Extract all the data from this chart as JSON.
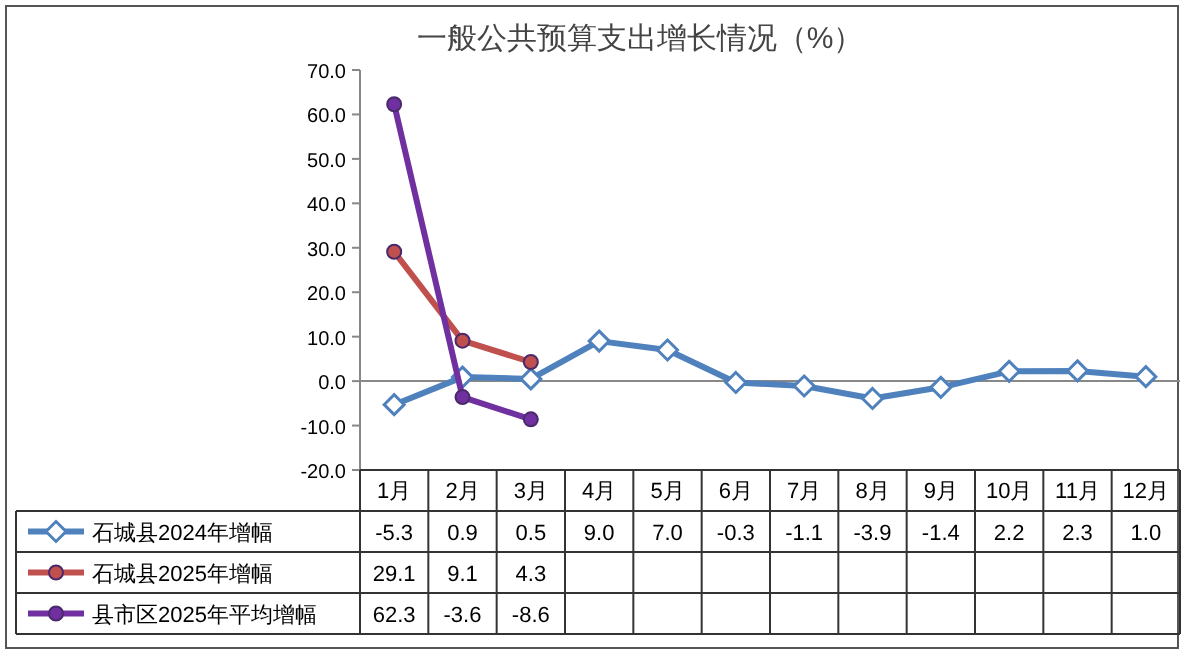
{
  "chart_data": {
    "type": "line",
    "title": "一般公共预算支出增长情况（%）",
    "categories": [
      "1月",
      "2月",
      "3月",
      "4月",
      "5月",
      "6月",
      "7月",
      "8月",
      "9月",
      "10月",
      "11月",
      "12月"
    ],
    "series": [
      {
        "name": "石城县2024年增幅",
        "color": "#4f81bd",
        "marker": "diamond",
        "values": [
          -5.3,
          0.9,
          0.5,
          9.0,
          7.0,
          -0.3,
          -1.1,
          -3.9,
          -1.4,
          2.2,
          2.3,
          1.0
        ],
        "value_labels": [
          "-5.3",
          "0.9",
          "0.5",
          "9.0",
          "7.0",
          "-0.3",
          "-1.1",
          "-3.9",
          "-1.4",
          "2.2",
          "2.3",
          "1.0"
        ]
      },
      {
        "name": "石城县2025年增幅",
        "color": "#c0504d",
        "marker": "circle",
        "values": [
          29.1,
          9.1,
          4.3,
          null,
          null,
          null,
          null,
          null,
          null,
          null,
          null,
          null
        ],
        "value_labels": [
          "29.1",
          "9.1",
          "4.3",
          null,
          null,
          null,
          null,
          null,
          null,
          null,
          null,
          null
        ]
      },
      {
        "name": "县市区2025年平均增幅",
        "color": "#7030a0",
        "marker": "circle",
        "values": [
          62.3,
          -3.6,
          -8.6,
          null,
          null,
          null,
          null,
          null,
          null,
          null,
          null,
          null
        ],
        "value_labels": [
          "62.3",
          "-3.6",
          "-8.6",
          null,
          null,
          null,
          null,
          null,
          null,
          null,
          null,
          null
        ]
      }
    ],
    "ylim": [
      -20,
      70
    ],
    "yticks": [
      {
        "value": -20,
        "label": "-20.0"
      },
      {
        "value": -10,
        "label": "-10.0"
      },
      {
        "value": 0,
        "label": "0.0"
      },
      {
        "value": 10,
        "label": "10.0"
      },
      {
        "value": 20,
        "label": "20.0"
      },
      {
        "value": 30,
        "label": "30.0"
      },
      {
        "value": 40,
        "label": "40.0"
      },
      {
        "value": 50,
        "label": "50.0"
      },
      {
        "value": 60,
        "label": "60.0"
      },
      {
        "value": 70,
        "label": "70.0"
      }
    ],
    "legend": "bottom"
  }
}
